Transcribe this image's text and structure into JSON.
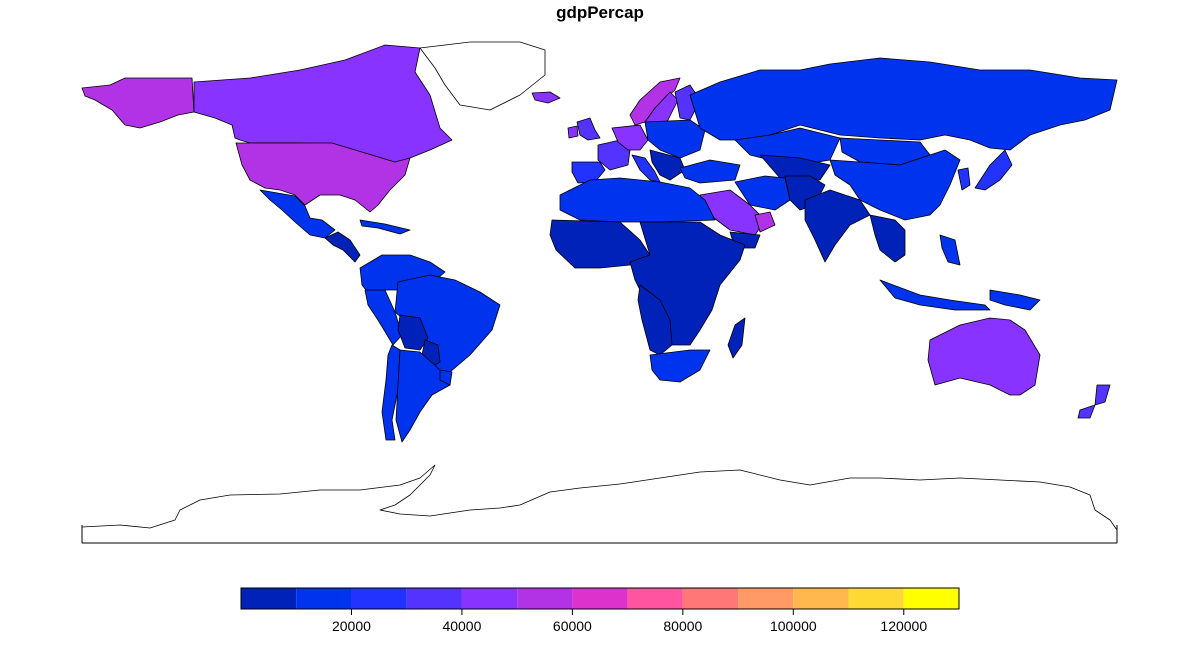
{
  "map": {
    "title": "gdpPercap"
  },
  "legend": {
    "breaks": [
      0,
      10000,
      20000,
      30000,
      40000,
      50000,
      60000,
      70000,
      80000,
      90000,
      100000,
      110000,
      120000,
      130000
    ],
    "colors": [
      "#0022B8",
      "#0033EE",
      "#2233FF",
      "#5533FF",
      "#8833FF",
      "#B233E6",
      "#DD33CC",
      "#FF55A0",
      "#FF7777",
      "#FF9966",
      "#FFB84D",
      "#FFD933",
      "#FFFF00"
    ],
    "tick_labels": [
      "20000",
      "40000",
      "60000",
      "80000",
      "100000",
      "120000"
    ]
  },
  "chart_data": {
    "type": "choropleth",
    "variable": "gdpPercap",
    "scale_range": [
      0,
      130000
    ],
    "regions": [
      {
        "region": "Alaska",
        "bin": 5
      },
      {
        "region": "Canada",
        "bin": 4
      },
      {
        "region": "Greenland",
        "bin": null
      },
      {
        "region": "United States",
        "bin": 5
      },
      {
        "region": "Mexico",
        "bin": 1
      },
      {
        "region": "Central America",
        "bin": 0
      },
      {
        "region": "Caribbean",
        "bin": 1
      },
      {
        "region": "Northern South America",
        "bin": 1
      },
      {
        "region": "Brazil",
        "bin": 1
      },
      {
        "region": "Peru",
        "bin": 1
      },
      {
        "region": "Bolivia",
        "bin": 0
      },
      {
        "region": "Paraguay",
        "bin": 0
      },
      {
        "region": "Chile",
        "bin": 1
      },
      {
        "region": "Argentina",
        "bin": 1
      },
      {
        "region": "Uruguay",
        "bin": 1
      },
      {
        "region": "Iceland",
        "bin": 4
      },
      {
        "region": "United Kingdom",
        "bin": 3
      },
      {
        "region": "Ireland",
        "bin": 4
      },
      {
        "region": "Norway",
        "bin": 5
      },
      {
        "region": "Sweden",
        "bin": 4
      },
      {
        "region": "Finland",
        "bin": 3
      },
      {
        "region": "France",
        "bin": 3
      },
      {
        "region": "Iberia",
        "bin": 2
      },
      {
        "region": "Western Europe",
        "bin": 4
      },
      {
        "region": "Eastern Europe",
        "bin": 1
      },
      {
        "region": "Italy",
        "bin": 2
      },
      {
        "region": "Balkans",
        "bin": 0
      },
      {
        "region": "Turkey",
        "bin": 1
      },
      {
        "region": "Russia",
        "bin": 1
      },
      {
        "region": "Kazakhstan",
        "bin": 1
      },
      {
        "region": "Central Asia",
        "bin": 0
      },
      {
        "region": "Mongolia",
        "bin": 1
      },
      {
        "region": "China",
        "bin": 1
      },
      {
        "region": "Japan",
        "bin": 2
      },
      {
        "region": "Korea",
        "bin": 2
      },
      {
        "region": "Iran",
        "bin": 1
      },
      {
        "region": "Afghanistan and Pakistan",
        "bin": 0
      },
      {
        "region": "India",
        "bin": 0
      },
      {
        "region": "Southeast Asia",
        "bin": 0
      },
      {
        "region": "Indonesia",
        "bin": 1
      },
      {
        "region": "Philippines",
        "bin": 1
      },
      {
        "region": "Papua New Guinea",
        "bin": 1
      },
      {
        "region": "Saudi Arabia",
        "bin": 4
      },
      {
        "region": "United Arab Emirates",
        "bin": 5
      },
      {
        "region": "Yemen",
        "bin": 0
      },
      {
        "region": "North Africa",
        "bin": 1
      },
      {
        "region": "West Africa",
        "bin": 0
      },
      {
        "region": "Central and East Africa",
        "bin": 0
      },
      {
        "region": "Southern Africa",
        "bin": 0
      },
      {
        "region": "South Africa",
        "bin": 1
      },
      {
        "region": "Madagascar",
        "bin": 0
      },
      {
        "region": "Australia",
        "bin": 4
      },
      {
        "region": "New Zealand",
        "bin": 3
      },
      {
        "region": "Antarctica",
        "bin": null
      }
    ]
  }
}
